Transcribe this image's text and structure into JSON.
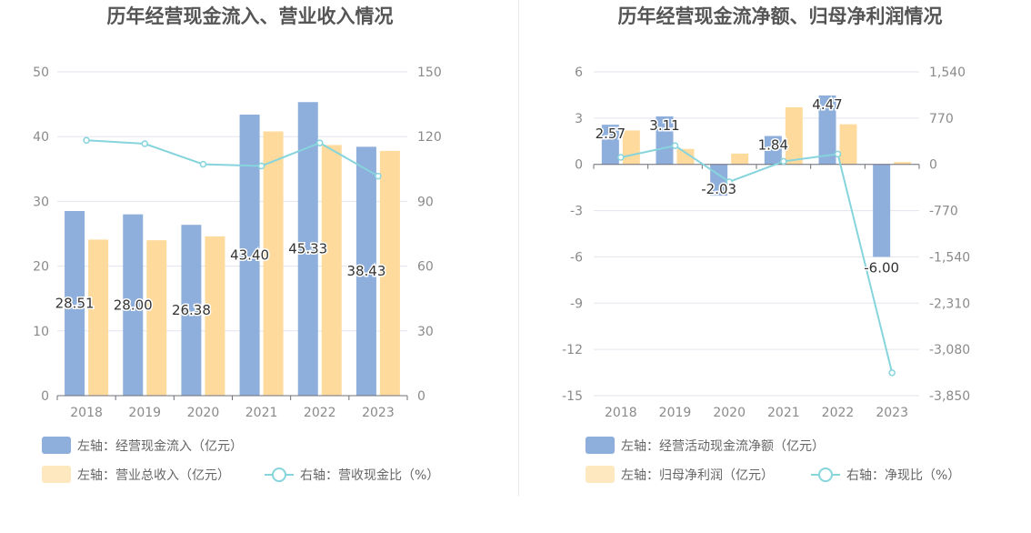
{
  "colors": {
    "bar_primary": "#8eaedc",
    "bar_secondary": "#fedb9c",
    "line": "#86d4dc",
    "grid": "#e2e5ee",
    "axis_text": "#8a8a8a",
    "title_text": "#555555",
    "label_text": "#333333"
  },
  "chart_data": [
    {
      "type": "bar+line",
      "title": "历年经营现金流入、营业收入情况",
      "categories": [
        "2018",
        "2019",
        "2020",
        "2021",
        "2022",
        "2023"
      ],
      "left_axis": {
        "ylim": [
          0,
          50
        ],
        "ticks": [
          "0",
          "10",
          "20",
          "30",
          "40",
          "50"
        ]
      },
      "right_axis": {
        "ylim": [
          0,
          150
        ],
        "ticks": [
          "0",
          "30",
          "60",
          "90",
          "120",
          "150"
        ]
      },
      "series": [
        {
          "name": "左轴：经营现金流入（亿元）",
          "kind": "bar",
          "axis": "left",
          "values": [
            28.51,
            28.0,
            26.38,
            43.4,
            45.33,
            38.43
          ],
          "labels": [
            "28.51",
            "28.00",
            "26.38",
            "43.40",
            "45.33",
            "38.43"
          ]
        },
        {
          "name": "左轴：营业总收入（亿元）",
          "kind": "bar",
          "axis": "left",
          "values": [
            24.1,
            24.0,
            24.6,
            40.8,
            38.7,
            37.8
          ]
        },
        {
          "name": "右轴：营收现金比（%）",
          "kind": "line",
          "axis": "right",
          "values": [
            118.3,
            116.7,
            107.2,
            106.4,
            117.1,
            101.7
          ]
        }
      ]
    },
    {
      "type": "bar+line",
      "title": "历年经营现金流净额、归母净利润情况",
      "categories": [
        "2018",
        "2019",
        "2020",
        "2021",
        "2022",
        "2023"
      ],
      "left_axis": {
        "ylim": [
          -15,
          6
        ],
        "ticks": [
          "-15",
          "-12",
          "-9",
          "-6",
          "-3",
          "0",
          "3",
          "6"
        ]
      },
      "right_axis": {
        "ylim": [
          -3850,
          1540
        ],
        "ticks": [
          "-3,850",
          "-3,080",
          "-2,310",
          "-1,540",
          "-770",
          "0",
          "770",
          "1,540"
        ]
      },
      "series": [
        {
          "name": "左轴：经营活动现金流净额（亿元）",
          "kind": "bar",
          "axis": "left",
          "values": [
            2.57,
            3.11,
            -2.03,
            1.84,
            4.47,
            -6.0
          ],
          "labels": [
            "2.57",
            "3.11",
            "-2.03",
            "1.84",
            "4.47",
            "-6.00"
          ]
        },
        {
          "name": "左轴：归母净利润（亿元）",
          "kind": "bar",
          "axis": "left",
          "values": [
            2.2,
            1.0,
            0.7,
            3.7,
            2.6,
            0.15
          ]
        },
        {
          "name": "右轴：净现比（%）",
          "kind": "line",
          "axis": "right",
          "values": [
            116.8,
            311.0,
            -290.0,
            49.7,
            171.9,
            -3470.0
          ]
        }
      ]
    }
  ]
}
